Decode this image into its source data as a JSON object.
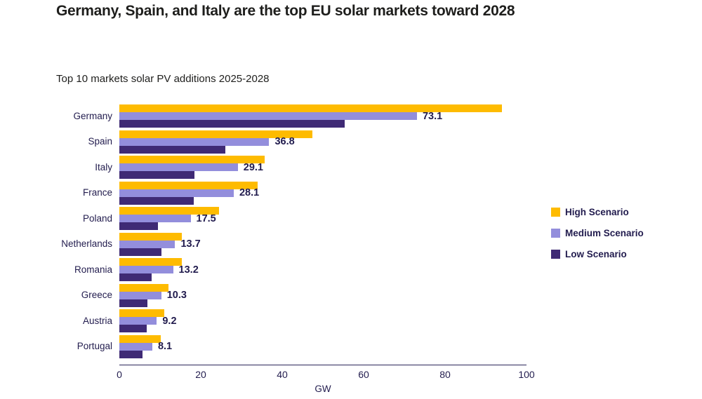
{
  "page": {
    "title": "Germany, Spain, and Italy are the top EU solar markets toward 2028"
  },
  "colors": {
    "high": "#FEBB00",
    "medium": "#938EDC",
    "low": "#3F2A75",
    "chart_text": "#221C4E",
    "heading_text": "#1E1E1C",
    "axis_line": "#2B2559",
    "background": "#FFFFFF"
  },
  "legend": {
    "items": [
      {
        "label": "High Scenario",
        "key": "high"
      },
      {
        "label": "Medium Scenario",
        "key": "medium"
      },
      {
        "label": "Low Scenario",
        "key": "low"
      }
    ]
  },
  "chart_data": {
    "type": "bar",
    "orientation": "horizontal",
    "title": "Top 10 markets solar PV additions 2025-2028",
    "xlabel": "GW",
    "xlim": [
      0,
      100
    ],
    "xticks": [
      0,
      20,
      40,
      60,
      80,
      100
    ],
    "grid": false,
    "legend_position": "right",
    "categories": [
      "Germany",
      "Spain",
      "Italy",
      "France",
      "Poland",
      "Netherlands",
      "Romania",
      "Greece",
      "Austria",
      "Portugal"
    ],
    "series": [
      {
        "name": "High Scenario",
        "key": "high",
        "values": [
          94.0,
          47.4,
          35.7,
          34.0,
          24.5,
          15.4,
          15.3,
          12.0,
          11.0,
          10.2
        ]
      },
      {
        "name": "Medium Scenario",
        "key": "medium",
        "labeled": true,
        "values": [
          73.1,
          36.8,
          29.1,
          28.1,
          17.5,
          13.7,
          13.2,
          10.3,
          9.2,
          8.1
        ]
      },
      {
        "name": "Low Scenario",
        "key": "low",
        "values": [
          55.4,
          26.0,
          18.5,
          18.3,
          9.4,
          10.3,
          7.9,
          6.9,
          6.7,
          5.7
        ]
      }
    ],
    "data_labels": {
      "series": "Medium Scenario",
      "values": [
        "73.1",
        "36.8",
        "29.1",
        "28.1",
        "17.5",
        "13.7",
        "13.2",
        "10.3",
        "9.2",
        "8.1"
      ]
    }
  }
}
